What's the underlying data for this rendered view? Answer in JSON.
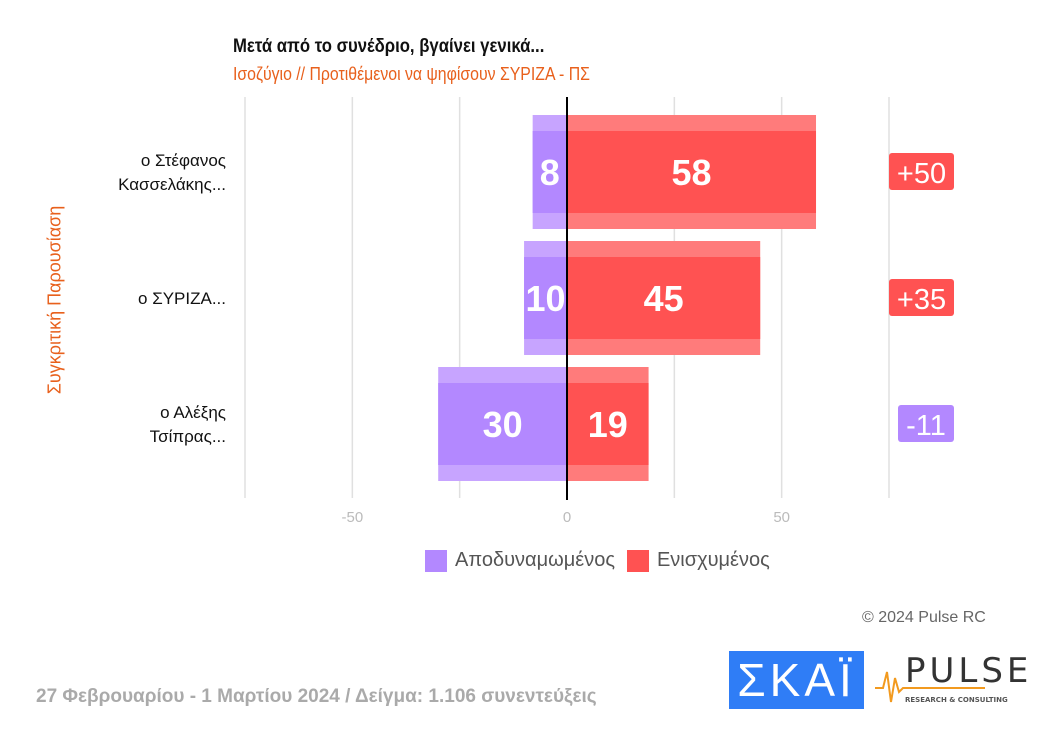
{
  "chart_data": {
    "type": "bar",
    "title": "Μετά από το συνέδριο, βγαίνει γενικά...",
    "subtitle": "Ισοζύγιο // Προτιθέμενοι να ψηφίσουν ΣΥΡΙΖΑ - ΠΣ",
    "ylabel": "Συγκριτική Παρουσίαση",
    "categories": [
      "ο Στέφανος Κασσελάκης...",
      "ο ΣΥΡΙΖΑ...",
      "ο Αλέξης Τσίπρας..."
    ],
    "category_lines": [
      [
        "ο Στέφανος",
        "Κασσελάκης..."
      ],
      [
        "ο ΣΥΡΙΖΑ..."
      ],
      [
        "ο Αλέξης",
        "Τσίπρας..."
      ]
    ],
    "series": [
      {
        "name": "Αποδυναμωμένος",
        "values": [
          8,
          10,
          30
        ],
        "color": "#b388ff",
        "direction": "negative"
      },
      {
        "name": "Ενισχυμένος",
        "values": [
          58,
          45,
          19
        ],
        "color": "#ff5252",
        "direction": "positive"
      }
    ],
    "balance_labels": [
      "+50",
      "+35",
      "-11"
    ],
    "xlim": [
      -75,
      75
    ],
    "xticks": [
      -50,
      0,
      50
    ],
    "grid": true,
    "legend": "bottom"
  },
  "copyright": "© 2024 Pulse RC",
  "footer": "27 Φεβρουαρίου - 1 Μαρτίου 2024  /  Δείγμα:  1.106 συνεντεύξεις",
  "logos": {
    "skai": "ΣΚΑΪ",
    "pulse": "PULSE",
    "pulse_sub": "RESEARCH & CONSULTING"
  }
}
